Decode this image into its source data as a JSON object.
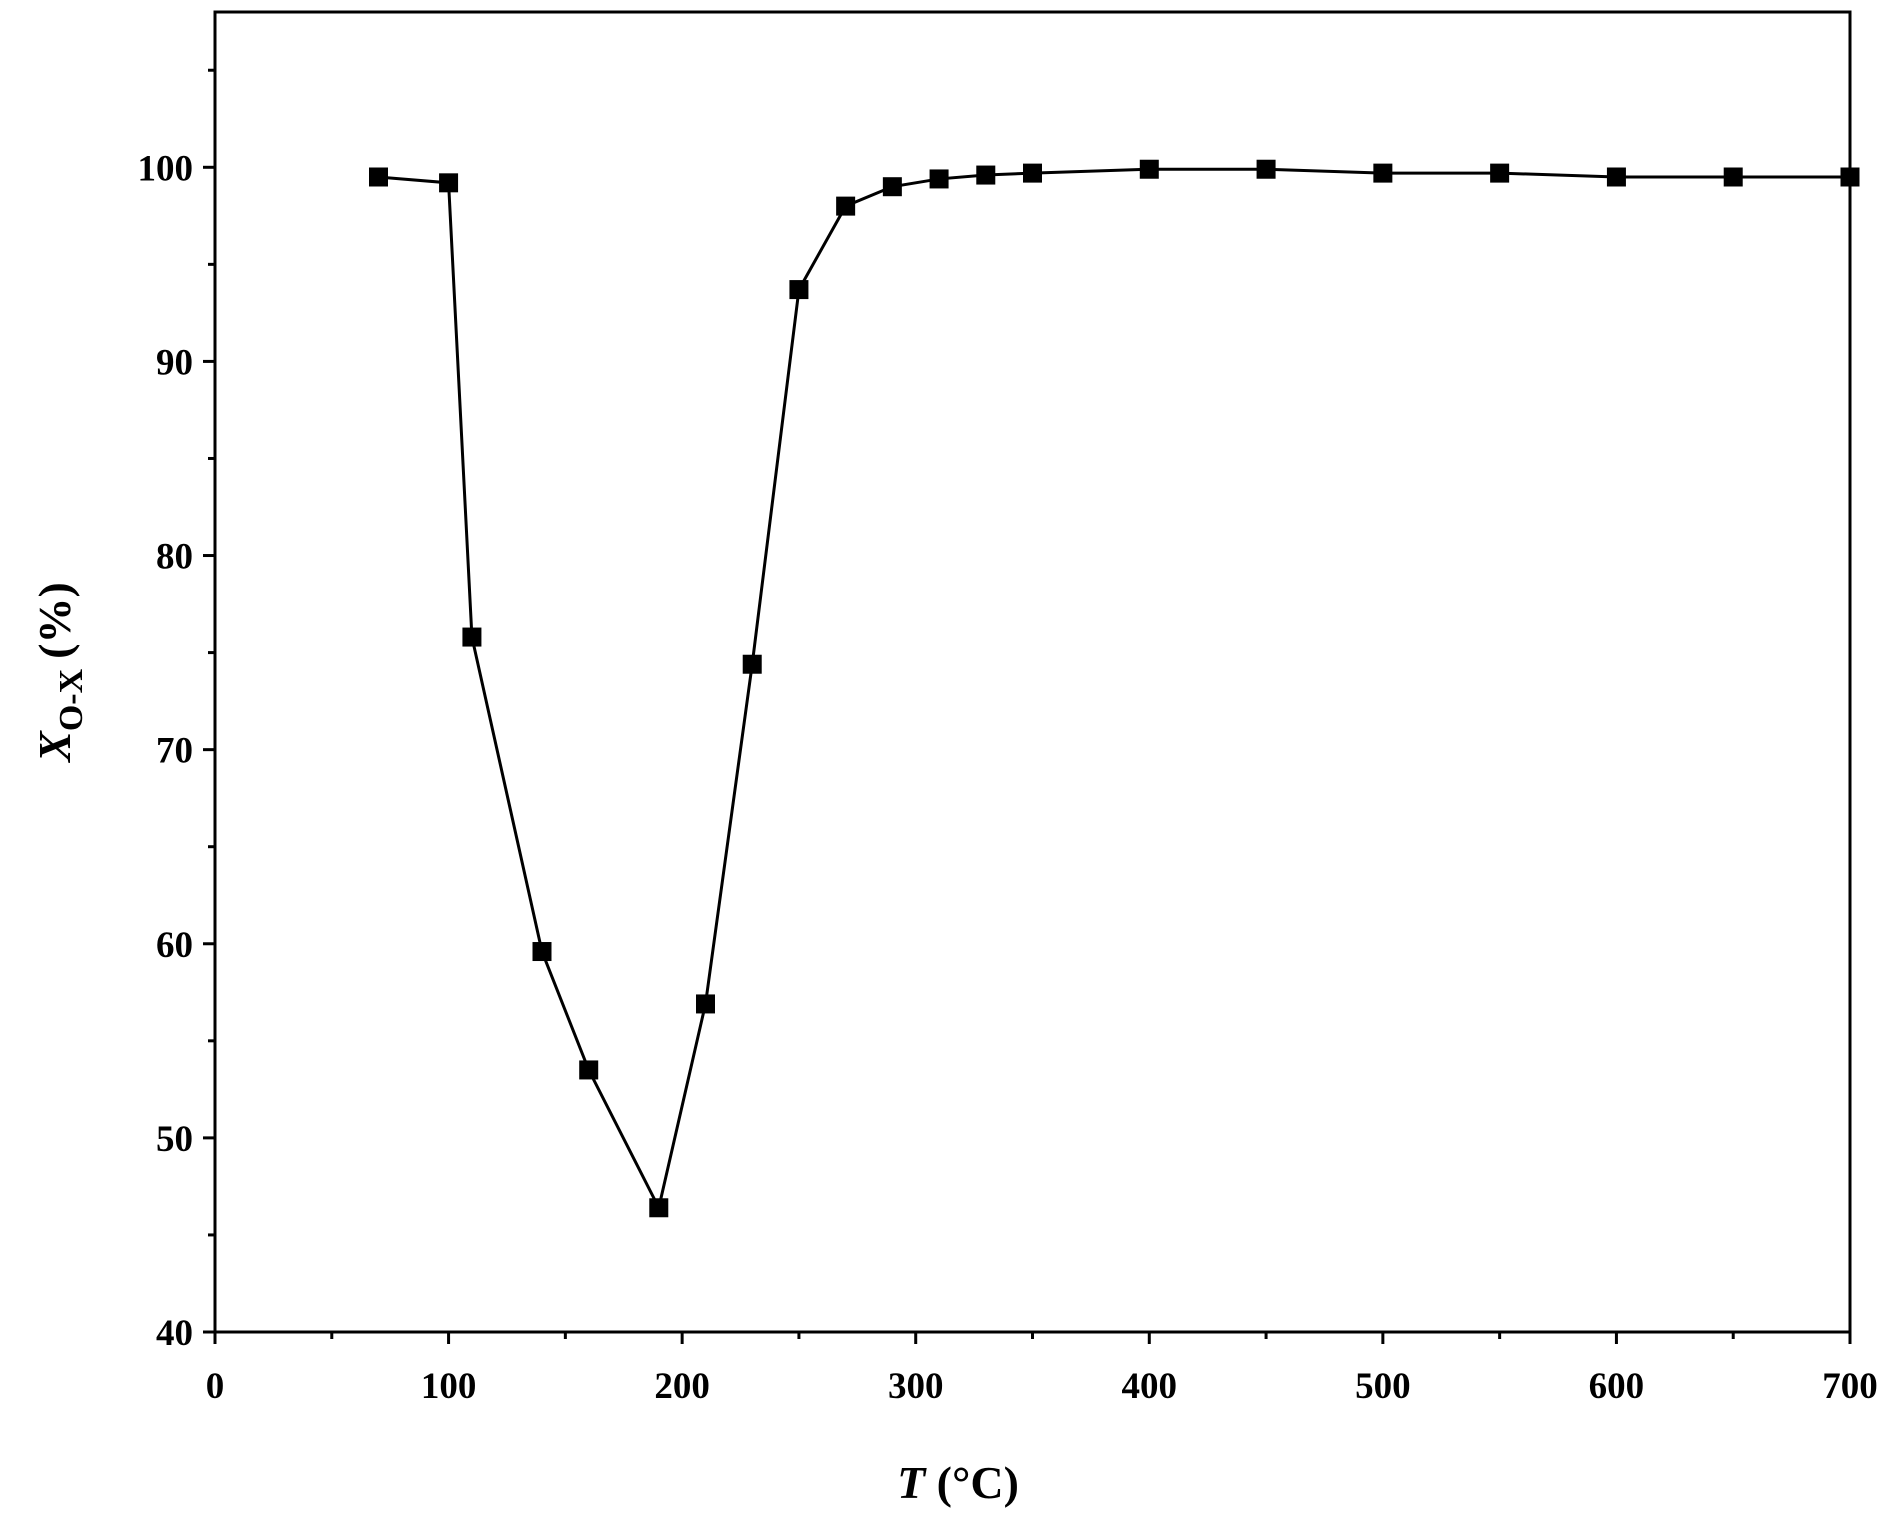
{
  "chart_data": {
    "type": "line",
    "xlabel": {
      "symbol": "T",
      "unit": "(°C)"
    },
    "ylabel": {
      "symbol": "X",
      "subscript": "O-X",
      "unit": "(%)"
    },
    "x": [
      70,
      100,
      110,
      140,
      160,
      190,
      210,
      230,
      250,
      270,
      290,
      310,
      330,
      350,
      400,
      450,
      500,
      550,
      600,
      650,
      700
    ],
    "series": [
      {
        "color": "#000000",
        "marker": "square",
        "values": [
          99.5,
          99.2,
          75.8,
          59.6,
          53.5,
          46.4,
          56.9,
          74.4,
          93.7,
          98,
          99,
          99.4,
          99.6,
          99.7,
          99.9,
          99.9,
          99.7,
          99.7,
          99.5,
          99.5,
          99.5
        ]
      }
    ],
    "xlim": [
      0,
      700
    ],
    "xticks": [
      0,
      100,
      200,
      300,
      400,
      500,
      600,
      700
    ],
    "xminorticks": [
      50,
      150,
      250,
      350,
      450,
      550,
      650
    ],
    "ylim": [
      40,
      108
    ],
    "yticks": [
      40,
      50,
      60,
      70,
      80,
      90,
      100
    ],
    "yminorticks": [
      45,
      55,
      65,
      75,
      85,
      95,
      105
    ],
    "grid": false
  }
}
